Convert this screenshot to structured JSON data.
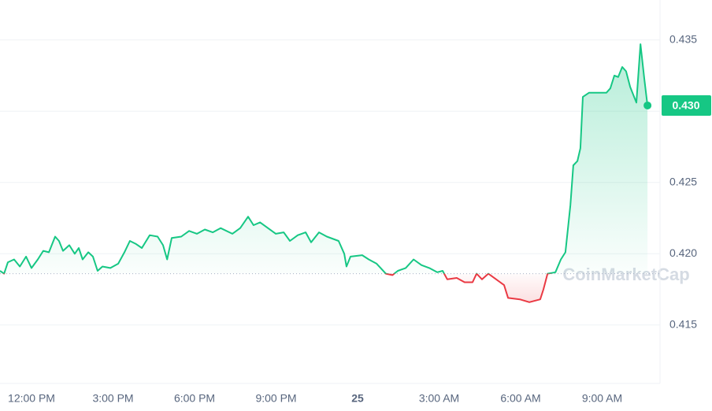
{
  "chart_data": {
    "type": "line",
    "x": [
      -1.16,
      -1.01,
      -0.87,
      -0.64,
      -0.43,
      -0.2,
      0,
      0.23,
      0.43,
      0.64,
      0.87,
      1.01,
      1.16,
      1.39,
      1.59,
      1.74,
      1.88,
      2.09,
      2.26,
      2.43,
      2.61,
      2.9,
      3.19,
      3.42,
      3.62,
      3.83,
      4.06,
      4.35,
      4.64,
      4.84,
      4.99,
      5.16,
      5.51,
      5.8,
      6.09,
      6.38,
      6.67,
      6.96,
      7.39,
      7.68,
      7.97,
      8.17,
      8.41,
      8.7,
      8.99,
      9.28,
      9.51,
      9.8,
      10.09,
      10.29,
      10.58,
      10.87,
      11.3,
      11.51,
      11.59,
      11.74,
      12.17,
      12.41,
      12.7,
      13.04,
      13.28,
      13.48,
      13.77,
      14.06,
      14.35,
      14.64,
      14.93,
      15.13,
      15.3,
      15.65,
      15.94,
      16.23,
      16.38,
      16.58,
      16.81,
      17.1,
      17.39,
      17.54,
      17.97,
      18.32,
      18.72,
      18.84,
      18.99,
      19.28,
      19.48,
      19.65,
      19.83,
      19.94,
      20.09,
      20.2,
      20.29,
      20.52,
      20.87,
      21.16,
      21.3,
      21.45,
      21.59,
      21.74,
      21.88,
      22.03,
      22.26,
      22.41,
      22.55,
      22.67
    ],
    "series": [
      {
        "color": "#16c784",
        "down_color": "#ea3943",
        "values": [
          0.4188,
          0.4186,
          0.4194,
          0.4196,
          0.4191,
          0.4198,
          0.419,
          0.4196,
          0.4202,
          0.4201,
          0.4212,
          0.4209,
          0.4202,
          0.4206,
          0.42,
          0.4204,
          0.4196,
          0.4201,
          0.4198,
          0.4188,
          0.4191,
          0.419,
          0.4193,
          0.4201,
          0.4209,
          0.4207,
          0.4204,
          0.4213,
          0.4212,
          0.4206,
          0.4196,
          0.4211,
          0.4212,
          0.4216,
          0.4214,
          0.4217,
          0.4215,
          0.4218,
          0.4214,
          0.4218,
          0.4226,
          0.422,
          0.4222,
          0.4218,
          0.4214,
          0.4215,
          0.4209,
          0.4213,
          0.4215,
          0.4208,
          0.4215,
          0.4212,
          0.4209,
          0.42,
          0.4191,
          0.4198,
          0.4199,
          0.4196,
          0.4193,
          0.4186,
          0.4185,
          0.4188,
          0.419,
          0.4196,
          0.4192,
          0.419,
          0.4187,
          0.4188,
          0.4182,
          0.4183,
          0.418,
          0.418,
          0.4186,
          0.4182,
          0.4186,
          0.4182,
          0.4178,
          0.4169,
          0.4168,
          0.4166,
          0.4168,
          0.4175,
          0.4186,
          0.4187,
          0.4196,
          0.4201,
          0.4234,
          0.4262,
          0.4265,
          0.4274,
          0.431,
          0.4313,
          0.4313,
          0.4313,
          0.4316,
          0.4325,
          0.4324,
          0.4331,
          0.4328,
          0.4317,
          0.4306,
          0.4347,
          0.4323,
          0.4304
        ]
      }
    ],
    "baseline": 0.4186,
    "last_price_label": "0.430",
    "watermark": "CoinMarketCap",
    "xlim": [
      -1.16,
      23.13
    ],
    "xticks": [
      {
        "value": 0,
        "label": "12:00 PM"
      },
      {
        "value": 3,
        "label": "3:00 PM"
      },
      {
        "value": 6,
        "label": "6:00 PM"
      },
      {
        "value": 9,
        "label": "9:00 PM"
      },
      {
        "value": 12,
        "label": "25"
      },
      {
        "value": 15,
        "label": "3:00 AM"
      },
      {
        "value": 18,
        "label": "6:00 AM"
      },
      {
        "value": 21,
        "label": "9:00 AM"
      }
    ],
    "ylim": [
      0.4109,
      0.4378
    ],
    "yticks": [
      0.415,
      {
        "value": 0.42,
        "label": "0.420"
      },
      0.425,
      {
        "value": 0.43,
        "label": "0.430"
      },
      0.435
    ],
    "grid": true
  }
}
